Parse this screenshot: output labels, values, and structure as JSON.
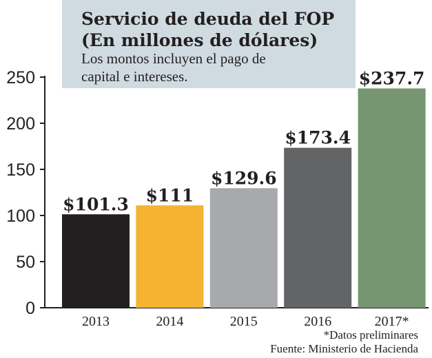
{
  "chart_data": {
    "type": "bar",
    "title": "Servicio de deuda del FOP\n(En millones de dólares)",
    "subtitle": "Los montos incluyen el pago de capital e intereses.",
    "categories": [
      "2013",
      "2014",
      "2015",
      "2016",
      "2017*"
    ],
    "values": [
      101.3,
      111,
      129.6,
      173.4,
      237.7
    ],
    "data_labels": [
      "$101.3",
      "$111",
      "$129.6",
      "$173.4",
      "$237.7"
    ],
    "colors": [
      "#231f20",
      "#f6b332",
      "#a7a9ac",
      "#636466",
      "#759670"
    ],
    "ylim": [
      0,
      250
    ],
    "yticks": [
      0,
      50,
      100,
      150,
      200,
      250
    ],
    "xlabel": "",
    "ylabel": "",
    "grid": false,
    "legend": "none"
  },
  "footnote": "*Datos preliminares",
  "source": "Fuente: Ministerio de Hacienda"
}
